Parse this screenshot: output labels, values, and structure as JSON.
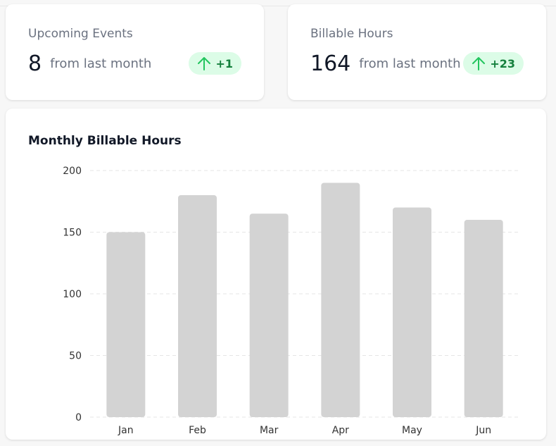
{
  "stats": [
    {
      "title": "Upcoming Events",
      "value": "8",
      "sub": "from last month",
      "delta": "+1",
      "delta_icon": "arrow-up-icon"
    },
    {
      "title": "Billable Hours",
      "value": "164",
      "sub": "from last month",
      "delta": "+23",
      "delta_icon": "arrow-up-icon"
    }
  ],
  "colors": {
    "bar": "#d3d3d3",
    "grid": "#e5e5e5",
    "badge_bg": "#dcfce7",
    "badge_fg": "#15803d"
  },
  "chart_data": {
    "type": "bar",
    "title": "Monthly Billable Hours",
    "categories": [
      "Jan",
      "Feb",
      "Mar",
      "Apr",
      "May",
      "Jun"
    ],
    "values": [
      150,
      180,
      165,
      190,
      170,
      160
    ],
    "ylim": [
      0,
      200
    ],
    "yticks": [
      0,
      50,
      100,
      150,
      200
    ],
    "xlabel": "",
    "ylabel": "",
    "grid": true,
    "legend": "none"
  }
}
